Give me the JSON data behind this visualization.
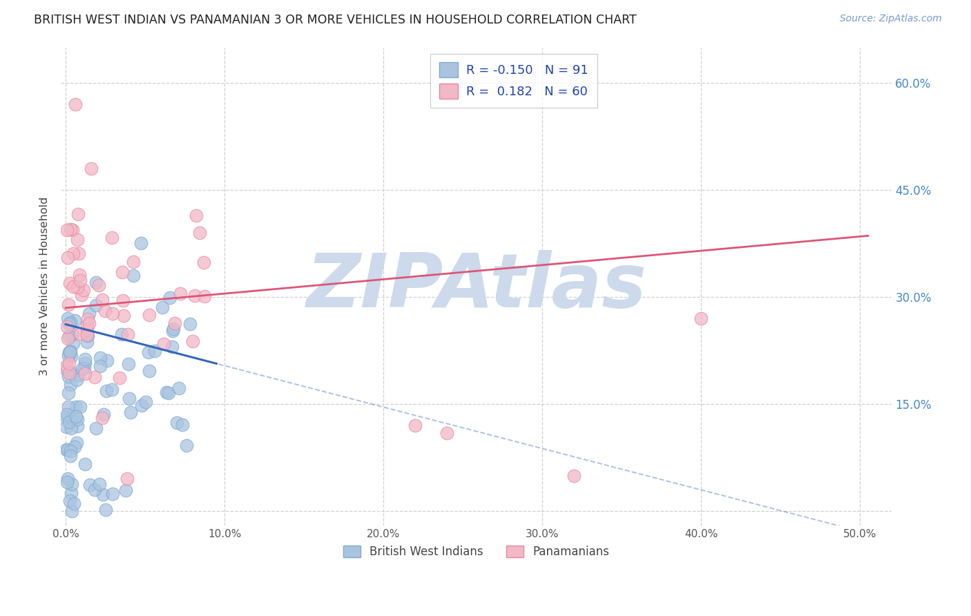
{
  "title": "BRITISH WEST INDIAN VS PANAMANIAN 3 OR MORE VEHICLES IN HOUSEHOLD CORRELATION CHART",
  "source_text": "Source: ZipAtlas.com",
  "ylabel": "3 or more Vehicles in Household",
  "ylim": [
    -0.02,
    0.65
  ],
  "xlim": [
    -0.003,
    0.52
  ],
  "ytick_positions": [
    0.0,
    0.15,
    0.3,
    0.45,
    0.6
  ],
  "ytick_labels_right": [
    "",
    "15.0%",
    "30.0%",
    "45.0%",
    "60.0%"
  ],
  "xtick_positions": [
    0.0,
    0.1,
    0.2,
    0.3,
    0.4,
    0.5
  ],
  "xtick_labels": [
    "0.0%",
    "10.0%",
    "20.0%",
    "30.0%",
    "40.0%",
    "50.0%"
  ],
  "grid_color": "#d0d0d0",
  "background_color": "#ffffff",
  "blue_color": "#aac4e0",
  "pink_color": "#f2b8c6",
  "blue_edge_color": "#7aaad4",
  "pink_edge_color": "#e888a4",
  "trend_blue_color": "#3366bb",
  "trend_pink_color": "#dd5577",
  "R_blue": -0.15,
  "N_blue": 91,
  "R_pink": 0.182,
  "N_pink": 60,
  "legend_label_blue": "British West Indians",
  "legend_label_pink": "Panamanians",
  "watermark_text": "ZIPAtlas",
  "watermark_color": "#ccdaeb",
  "blue_trend_y0": 0.262,
  "blue_trend_slope": -0.58,
  "blue_solid_xend": 0.095,
  "pink_trend_y0": 0.285,
  "pink_trend_slope": 0.2,
  "scatter_size": 180,
  "scatter_alpha": 0.75,
  "scatter_lw": 0.8
}
